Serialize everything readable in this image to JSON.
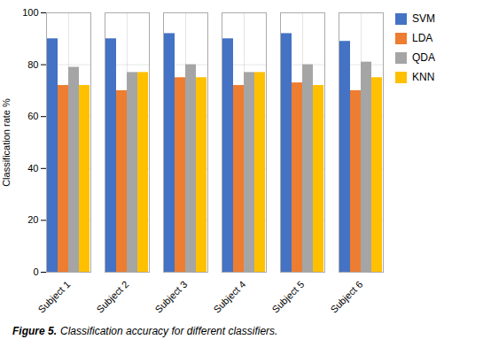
{
  "chart_data": {
    "type": "bar",
    "categories": [
      "Subject 1",
      "Subject 2",
      "Subject 3",
      "Subject 4",
      "Subject 5",
      "Subject 6"
    ],
    "series": [
      {
        "name": "SVM",
        "color": "#4472C4",
        "values": [
          90,
          90,
          92,
          90,
          92,
          89
        ]
      },
      {
        "name": "LDA",
        "color": "#ED7D31",
        "values": [
          72,
          70,
          75,
          72,
          73,
          70
        ]
      },
      {
        "name": "QDA",
        "color": "#A5A5A5",
        "values": [
          79,
          77,
          80,
          77,
          80,
          81
        ]
      },
      {
        "name": "KNN",
        "color": "#FFC000",
        "values": [
          72,
          77,
          75,
          77,
          72,
          75
        ]
      }
    ],
    "ylabel": "Classification rate %",
    "ylim": [
      0,
      100
    ],
    "yticks": [
      0,
      20,
      40,
      60,
      80,
      100
    ],
    "grid": true,
    "legend": "right",
    "caption": [
      "Figure 5.",
      "Classification accuracy for different classifiers."
    ]
  }
}
